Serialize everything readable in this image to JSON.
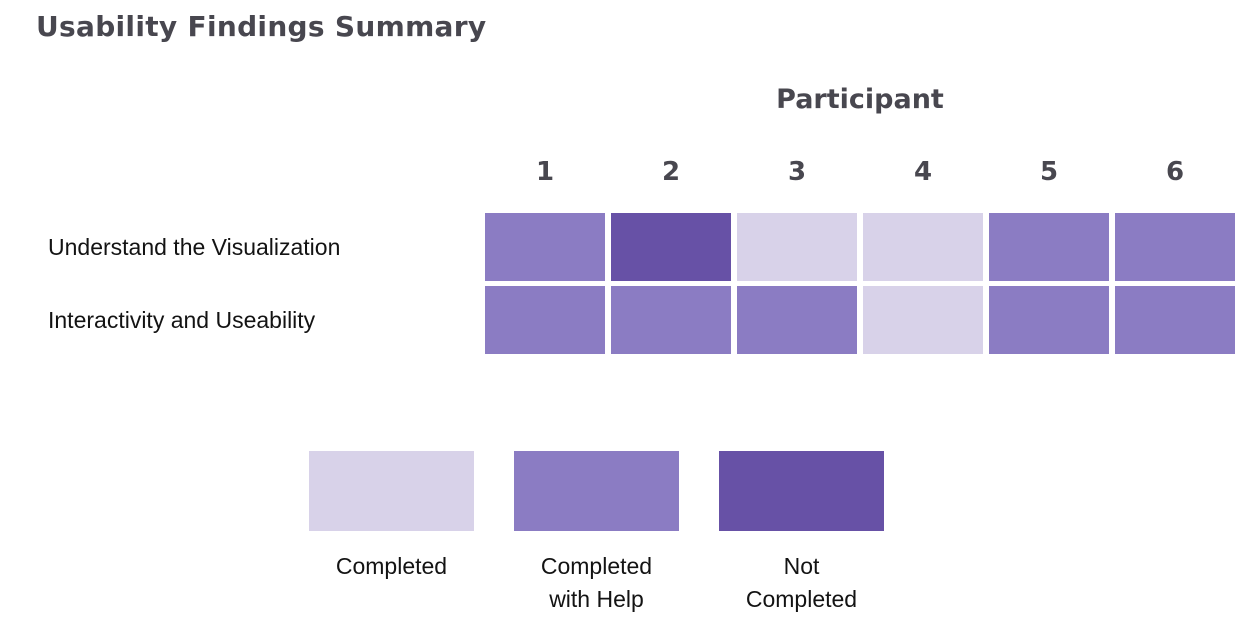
{
  "title": "Usability Findings Summary",
  "chart_data": {
    "type": "heatmap",
    "title": "Usability Findings Summary",
    "column_header": "Participant",
    "columns": [
      "1",
      "2",
      "3",
      "4",
      "5",
      "6"
    ],
    "rows": [
      {
        "label": "Understand the Visualization",
        "values": [
          "completed_with_help",
          "not_completed",
          "completed",
          "completed",
          "completed_with_help",
          "completed_with_help"
        ]
      },
      {
        "label": "Interactivity and Useability",
        "values": [
          "completed_with_help",
          "completed_with_help",
          "completed_with_help",
          "completed",
          "completed_with_help",
          "completed_with_help"
        ]
      }
    ],
    "legend": [
      {
        "key": "completed",
        "label": "Completed",
        "color": "#d8d2e9"
      },
      {
        "key": "completed_with_help",
        "label": "Completed with Help",
        "color": "#8b7cc3"
      },
      {
        "key": "not_completed",
        "label": "Not Completed",
        "color": "#6751a6"
      }
    ],
    "layout": {
      "legend_position": "bottom",
      "grid": "off",
      "header_text_color": "#48474f",
      "label_text_color": "#131313"
    }
  }
}
